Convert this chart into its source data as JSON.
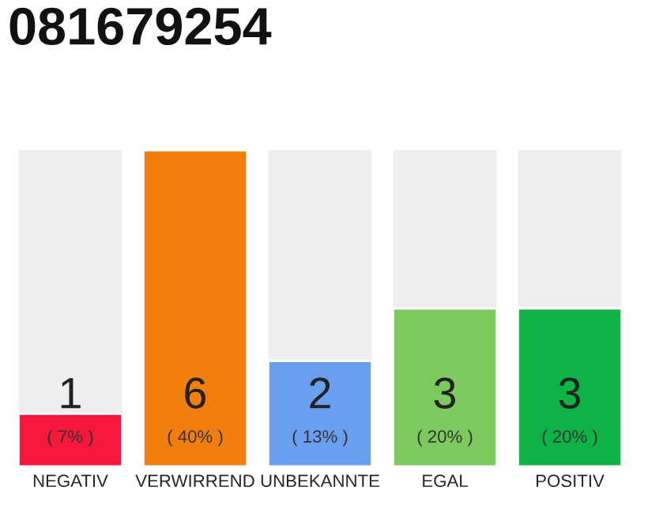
{
  "chart_data": {
    "type": "bar",
    "title": "081679254",
    "categories": [
      "NEGATIV",
      "VERWIRREND",
      "UNBEKANNTE",
      "EGAL",
      "POSITIV"
    ],
    "values": [
      1,
      6,
      2,
      3,
      3
    ],
    "colors": [
      "#f5173c",
      "#f27e0c",
      "#6a9ff0",
      "#7cc95e",
      "#0db445"
    ],
    "ylim": [
      0,
      6
    ],
    "data_labels": true,
    "tick_labels": "x",
    "grid": false,
    "legend": false,
    "annotations": [
      "( 7% )",
      "( 40% )",
      "( 13% )",
      "( 20% )",
      "( 20% )"
    ]
  }
}
